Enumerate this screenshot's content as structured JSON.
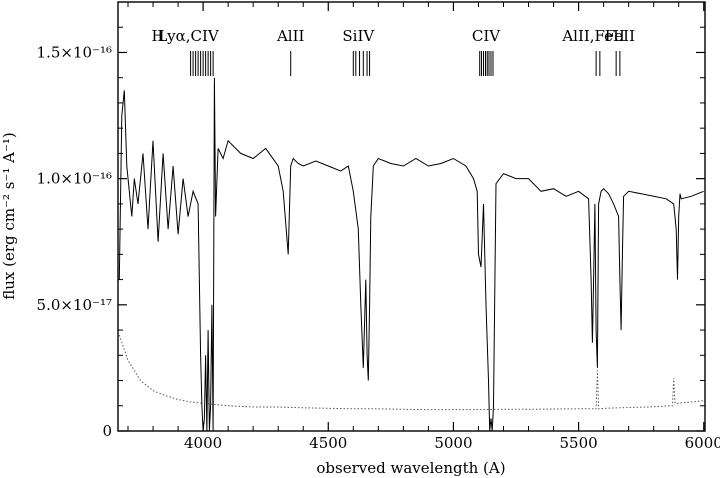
{
  "chart_data": {
    "type": "line",
    "title": "",
    "xlabel": "observed wavelength (A)",
    "ylabel": "flux (erg cm⁻² s⁻¹ A⁻¹)",
    "xlim": [
      3660,
      6005
    ],
    "ylim": [
      0,
      1.7e-16
    ],
    "xticks": [
      {
        "value": 4000,
        "label": "4000"
      },
      {
        "value": 4500,
        "label": "4500"
      },
      {
        "value": 5000,
        "label": "5000"
      },
      {
        "value": 5500,
        "label": "5500"
      },
      {
        "value": 6000,
        "label": "6000"
      }
    ],
    "yticks": [
      {
        "value": 0,
        "label": "0"
      },
      {
        "value": 5e-17,
        "label": "5.0×10⁻¹⁷"
      },
      {
        "value": 1e-16,
        "label": "1.0×10⁻¹⁶"
      },
      {
        "value": 1.5e-16,
        "label": "1.5×10⁻¹⁶"
      }
    ],
    "grid": false,
    "series": [
      {
        "style": "solid",
        "color": "#000000",
        "x": [
          3665,
          3675,
          3685,
          3695,
          3705,
          3715,
          3725,
          3740,
          3760,
          3780,
          3800,
          3820,
          3840,
          3860,
          3880,
          3900,
          3920,
          3940,
          3960,
          3980,
          3990,
          3995,
          4000,
          4005,
          4010,
          4015,
          4020,
          4025,
          4030,
          4035,
          4040,
          4045,
          4050,
          4060,
          4080,
          4100,
          4150,
          4200,
          4250,
          4300,
          4320,
          4340,
          4350,
          4360,
          4380,
          4400,
          4450,
          4500,
          4550,
          4580,
          4600,
          4620,
          4630,
          4640,
          4650,
          4655,
          4660,
          4665,
          4670,
          4675,
          4680,
          4700,
          4750,
          4800,
          4850,
          4900,
          4950,
          5000,
          5050,
          5080,
          5095,
          5100,
          5110,
          5120,
          5130,
          5140,
          5145,
          5150,
          5155,
          5160,
          5170,
          5200,
          5250,
          5300,
          5350,
          5400,
          5450,
          5500,
          5540,
          5550,
          5555,
          5560,
          5565,
          5570,
          5575,
          5580,
          5590,
          5600,
          5620,
          5640,
          5660,
          5665,
          5670,
          5675,
          5680,
          5700,
          5750,
          5800,
          5850,
          5880,
          5890,
          5895,
          5900,
          5905,
          5910,
          5950,
          6000
        ],
        "y": [
          6e-17,
          1.25e-16,
          1.35e-16,
          1.05e-16,
          9.5e-17,
          8.5e-17,
          1e-16,
          9e-17,
          1.1e-16,
          8e-17,
          1.15e-16,
          7.5e-17,
          1.1e-16,
          8e-17,
          1.05e-16,
          7.8e-17,
          1e-16,
          8.5e-17,
          9.5e-17,
          9e-17,
          3e-17,
          1e-17,
          0,
          5e-18,
          3e-17,
          0,
          4e-17,
          0,
          1e-17,
          5e-17,
          0,
          1.4e-16,
          8.5e-17,
          1.12e-16,
          1.08e-16,
          1.15e-16,
          1.1e-16,
          1.08e-16,
          1.12e-16,
          1.05e-16,
          9.5e-17,
          7e-17,
          1.05e-16,
          1.08e-16,
          1.06e-16,
          1.05e-16,
          1.07e-16,
          1.05e-16,
          1.03e-16,
          1.05e-16,
          9.5e-17,
          8e-17,
          5e-17,
          2.5e-17,
          6e-17,
          3e-17,
          2e-17,
          5e-17,
          8.5e-17,
          9.5e-17,
          1.05e-16,
          1.08e-16,
          1.06e-16,
          1.05e-16,
          1.08e-16,
          1.05e-16,
          1.06e-16,
          1.08e-16,
          1.05e-16,
          1e-16,
          9.5e-17,
          7e-17,
          6.5e-17,
          9e-17,
          5e-17,
          2e-17,
          0,
          5e-18,
          0,
          1e-17,
          9.8e-17,
          1.02e-16,
          1e-16,
          1e-16,
          9.5e-17,
          9.6e-17,
          9.3e-17,
          9.5e-17,
          9.2e-17,
          6e-17,
          3.5e-17,
          6e-17,
          9e-17,
          4e-17,
          2.5e-17,
          9e-17,
          9.5e-17,
          9.6e-17,
          9.4e-17,
          9e-17,
          8.5e-17,
          6e-17,
          4e-17,
          7e-17,
          9.3e-17,
          9.5e-17,
          9.4e-17,
          9.3e-17,
          9.2e-17,
          9e-17,
          8e-17,
          6e-17,
          8.5e-17,
          9.4e-17,
          9.2e-17,
          9.3e-17,
          9.5e-17
        ]
      },
      {
        "style": "dotted",
        "color": "#555555",
        "x": [
          3665,
          3700,
          3750,
          3800,
          3850,
          3900,
          3950,
          4000,
          4050,
          4100,
          4200,
          4300,
          4400,
          4500,
          4600,
          4700,
          4800,
          4900,
          5000,
          5100,
          5200,
          5300,
          5400,
          5500,
          5570,
          5575,
          5580,
          5585,
          5600,
          5700,
          5800,
          5860,
          5875,
          5880,
          5885,
          5900,
          5950,
          6000
        ],
        "y": [
          3.8e-17,
          2.8e-17,
          2e-17,
          1.6e-17,
          1.4e-17,
          1.25e-17,
          1.15e-17,
          1.1e-17,
          1.05e-17,
          1e-17,
          9.5e-18,
          9.5e-18,
          9.2e-18,
          9e-18,
          8.8e-18,
          8.8e-18,
          8.6e-18,
          8.5e-18,
          8.5e-18,
          8.5e-18,
          8.6e-18,
          8.6e-18,
          8.7e-18,
          8.8e-18,
          8.8e-18,
          2.4e-17,
          8.8e-18,
          8.8e-18,
          9e-18,
          9.3e-18,
          9.6e-18,
          1e-17,
          1e-17,
          2.1e-17,
          1.1e-17,
          1.1e-17,
          1.15e-17,
          1.2e-17
        ]
      }
    ],
    "line_ids": [
      {
        "label": "H",
        "ticks": []
      },
      {
        "label": "Lyα,CIV",
        "ticks": [
          3950,
          3960,
          3970,
          3980,
          3990,
          4000,
          4010,
          4020,
          4030,
          4040
        ]
      },
      {
        "label": "AlII",
        "ticks": [
          4350
        ]
      },
      {
        "label": "SiIV",
        "ticks": [
          4600,
          4610,
          4625,
          4640,
          4655,
          4665
        ]
      },
      {
        "label": "CIV",
        "ticks": [
          5105,
          5112,
          5120,
          5128,
          5135,
          5142,
          5150,
          5158
        ]
      },
      {
        "label": "AlII,FeII",
        "ticks": [
          5570,
          5585
        ]
      },
      {
        "label": "FeII",
        "ticks": [
          5650,
          5665
        ]
      }
    ]
  }
}
